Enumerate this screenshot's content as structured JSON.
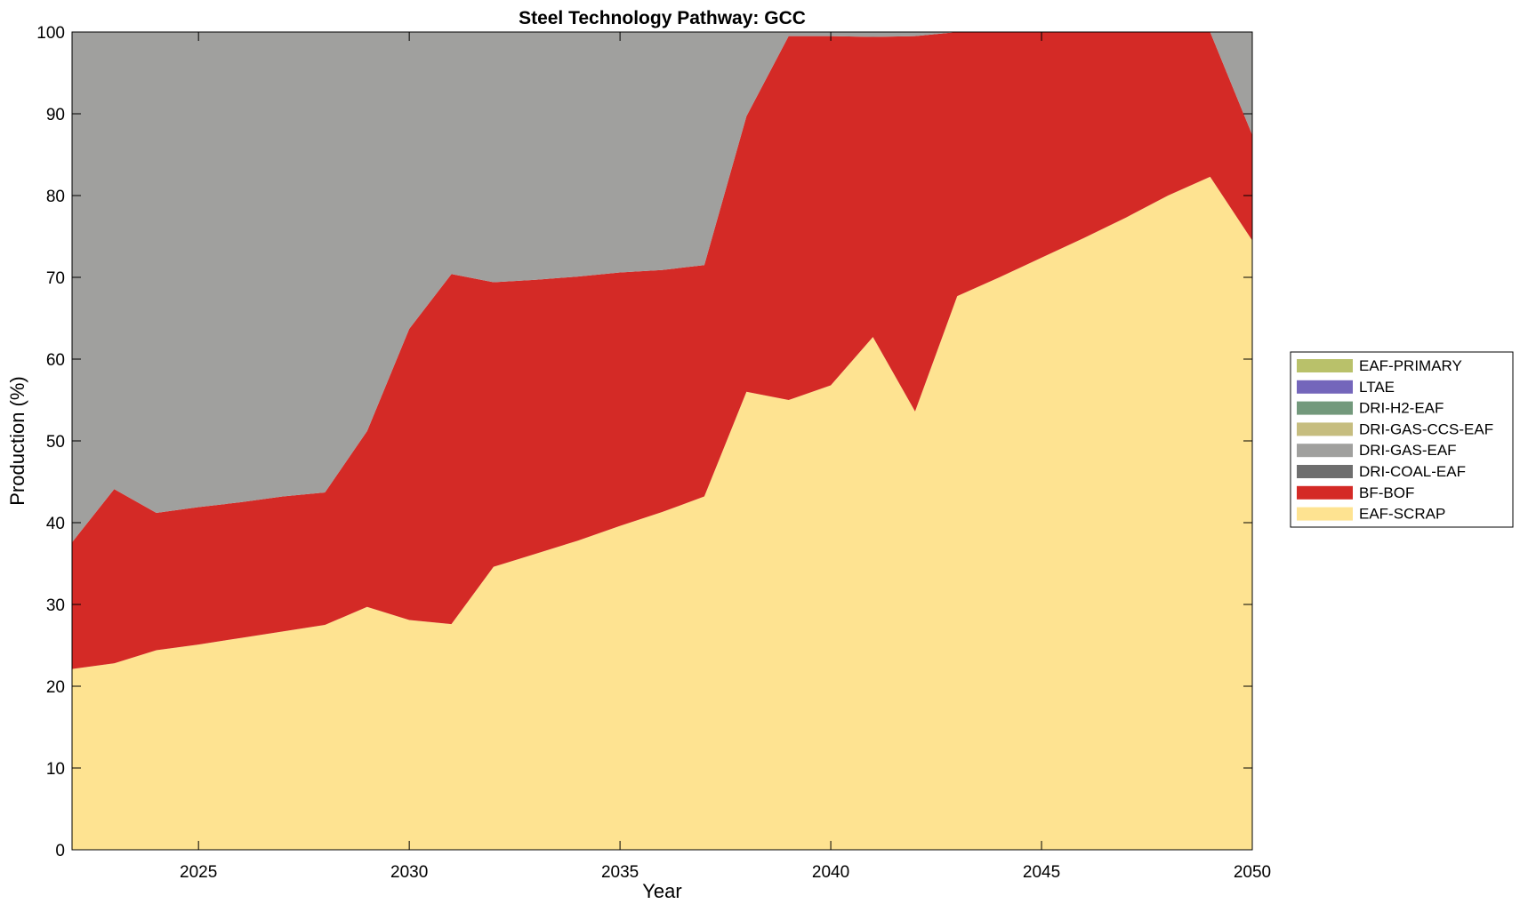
{
  "chart_data": {
    "type": "area",
    "stacked": true,
    "title": "Steel Technology Pathway: GCC",
    "xlabel": "Year",
    "ylabel": "Production (%)",
    "xlim": [
      2022,
      2050
    ],
    "ylim": [
      0,
      100
    ],
    "xticks": [
      "2025",
      "2030",
      "2035",
      "2040",
      "2045",
      "2050"
    ],
    "yticks": [
      "0",
      "10",
      "20",
      "30",
      "40",
      "50",
      "60",
      "70",
      "80",
      "90",
      "100"
    ],
    "grid": false,
    "legend_position": "right",
    "x": [
      2022,
      2023,
      2024,
      2025,
      2026,
      2027,
      2028,
      2029,
      2030,
      2031,
      2032,
      2033,
      2034,
      2035,
      2036,
      2037,
      2038,
      2039,
      2040,
      2041,
      2042,
      2043,
      2044,
      2045,
      2046,
      2047,
      2048,
      2049,
      2050
    ],
    "series": [
      {
        "name": "EAF-SCRAP",
        "color": "#FEE391",
        "values": [
          22.1,
          22.8,
          24.4,
          25.1,
          25.9,
          26.7,
          27.5,
          29.7,
          28.1,
          27.6,
          34.6,
          36.2,
          37.8,
          39.6,
          41.3,
          43.2,
          56.0,
          55.0,
          56.8,
          62.7,
          53.6,
          67.7,
          70.0,
          72.4,
          74.8,
          77.3,
          80.0,
          82.3,
          74.5
        ]
      },
      {
        "name": "BF-BOF",
        "color": "#D42A26",
        "values": [
          15.5,
          21.3,
          16.8,
          16.8,
          16.6,
          16.5,
          16.2,
          21.5,
          35.6,
          42.8,
          34.8,
          33.5,
          32.3,
          31.0,
          29.6,
          28.3,
          33.7,
          44.5,
          42.7,
          36.7,
          45.9,
          32.3,
          30.0,
          27.6,
          25.2,
          22.7,
          20.0,
          17.7,
          12.9
        ]
      },
      {
        "name": "DRI-COAL-EAF",
        "color": "#6E6E6E",
        "values": [
          0,
          0,
          0,
          0,
          0,
          0,
          0,
          0,
          0,
          0,
          0,
          0,
          0,
          0,
          0,
          0,
          0,
          0,
          0,
          0,
          0,
          0,
          0,
          0,
          0,
          0,
          0,
          0,
          0
        ]
      },
      {
        "name": "DRI-GAS-EAF",
        "color": "#A0A09E",
        "values": [
          62.4,
          55.9,
          58.8,
          58.1,
          57.5,
          56.8,
          56.3,
          48.8,
          36.3,
          29.6,
          30.6,
          30.3,
          29.9,
          29.4,
          29.1,
          28.5,
          10.3,
          0.5,
          0.5,
          0.6,
          0.5,
          0,
          0,
          0,
          0,
          0,
          0,
          0,
          12.6
        ]
      },
      {
        "name": "DRI-GAS-CCS-EAF",
        "color": "#C6BD7F",
        "values": [
          0,
          0,
          0,
          0,
          0,
          0,
          0,
          0,
          0,
          0,
          0,
          0,
          0,
          0,
          0,
          0,
          0,
          0,
          0,
          0,
          0,
          0,
          0,
          0,
          0,
          0,
          0,
          0,
          0
        ]
      },
      {
        "name": "DRI-H2-EAF",
        "color": "#73997C",
        "values": [
          0,
          0,
          0,
          0,
          0,
          0,
          0,
          0,
          0,
          0,
          0,
          0,
          0,
          0,
          0,
          0,
          0,
          0,
          0,
          0,
          0,
          0,
          0,
          0,
          0,
          0,
          0,
          0,
          0
        ]
      },
      {
        "name": "LTAE",
        "color": "#7466BB",
        "values": [
          0,
          0,
          0,
          0,
          0,
          0,
          0,
          0,
          0,
          0,
          0,
          0,
          0,
          0,
          0,
          0,
          0,
          0,
          0,
          0,
          0,
          0,
          0,
          0,
          0,
          0,
          0,
          0,
          0
        ]
      },
      {
        "name": "EAF-PRIMARY",
        "color": "#B9C16A",
        "values": [
          0,
          0,
          0,
          0,
          0,
          0,
          0,
          0,
          0,
          0,
          0,
          0,
          0,
          0,
          0,
          0,
          0,
          0,
          0,
          0,
          0,
          0,
          0,
          0,
          0,
          0,
          0,
          0,
          0
        ]
      }
    ],
    "legend_order": [
      "EAF-PRIMARY",
      "LTAE",
      "DRI-H2-EAF",
      "DRI-GAS-CCS-EAF",
      "DRI-GAS-EAF",
      "DRI-COAL-EAF",
      "BF-BOF",
      "EAF-SCRAP"
    ]
  }
}
